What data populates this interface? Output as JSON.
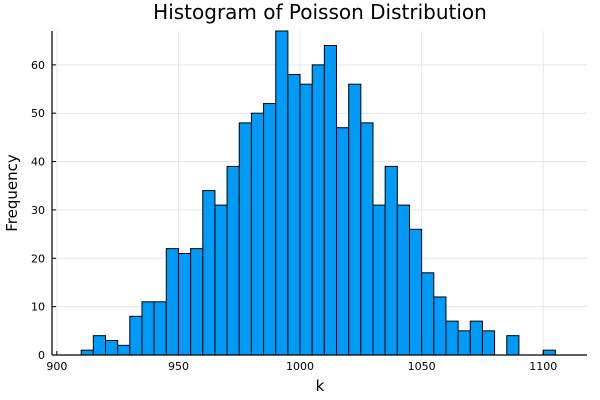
{
  "chart_data": {
    "type": "bar",
    "title": "Histogram of Poisson Distribution",
    "xlabel": "k",
    "ylabel": "Frequency",
    "xlim": [
      898,
      1118
    ],
    "ylim": [
      0,
      67
    ],
    "xticks": [
      900,
      950,
      1000,
      1050,
      1100
    ],
    "yticks": [
      0,
      10,
      20,
      30,
      40,
      50,
      60
    ],
    "bin_width": 5,
    "grid": true,
    "legend": "none",
    "colors": {
      "bar_fill": "#009AF9",
      "bar_edge": "#000000"
    },
    "bins": [
      {
        "x0": 910,
        "x1": 915,
        "count": 1
      },
      {
        "x0": 915,
        "x1": 920,
        "count": 4
      },
      {
        "x0": 920,
        "x1": 925,
        "count": 3
      },
      {
        "x0": 925,
        "x1": 930,
        "count": 2
      },
      {
        "x0": 930,
        "x1": 935,
        "count": 8
      },
      {
        "x0": 935,
        "x1": 940,
        "count": 11
      },
      {
        "x0": 940,
        "x1": 945,
        "count": 11
      },
      {
        "x0": 945,
        "x1": 950,
        "count": 22
      },
      {
        "x0": 950,
        "x1": 955,
        "count": 21
      },
      {
        "x0": 955,
        "x1": 960,
        "count": 22
      },
      {
        "x0": 960,
        "x1": 965,
        "count": 34
      },
      {
        "x0": 965,
        "x1": 970,
        "count": 31
      },
      {
        "x0": 970,
        "x1": 975,
        "count": 39
      },
      {
        "x0": 975,
        "x1": 980,
        "count": 48
      },
      {
        "x0": 980,
        "x1": 985,
        "count": 50
      },
      {
        "x0": 985,
        "x1": 990,
        "count": 52
      },
      {
        "x0": 990,
        "x1": 995,
        "count": 67
      },
      {
        "x0": 995,
        "x1": 1000,
        "count": 58
      },
      {
        "x0": 1000,
        "x1": 1005,
        "count": 56
      },
      {
        "x0": 1005,
        "x1": 1010,
        "count": 60
      },
      {
        "x0": 1010,
        "x1": 1015,
        "count": 64
      },
      {
        "x0": 1015,
        "x1": 1020,
        "count": 47
      },
      {
        "x0": 1020,
        "x1": 1025,
        "count": 56
      },
      {
        "x0": 1025,
        "x1": 1030,
        "count": 48
      },
      {
        "x0": 1030,
        "x1": 1035,
        "count": 31
      },
      {
        "x0": 1035,
        "x1": 1040,
        "count": 39
      },
      {
        "x0": 1040,
        "x1": 1045,
        "count": 31
      },
      {
        "x0": 1045,
        "x1": 1050,
        "count": 26
      },
      {
        "x0": 1050,
        "x1": 1055,
        "count": 17
      },
      {
        "x0": 1055,
        "x1": 1060,
        "count": 12
      },
      {
        "x0": 1060,
        "x1": 1065,
        "count": 7
      },
      {
        "x0": 1065,
        "x1": 1070,
        "count": 5
      },
      {
        "x0": 1070,
        "x1": 1075,
        "count": 7
      },
      {
        "x0": 1075,
        "x1": 1080,
        "count": 5
      },
      {
        "x0": 1085,
        "x1": 1090,
        "count": 4
      },
      {
        "x0": 1100,
        "x1": 1105,
        "count": 1
      }
    ]
  }
}
